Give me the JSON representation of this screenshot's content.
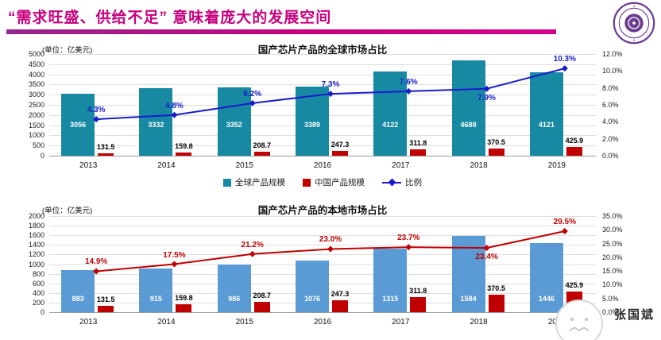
{
  "header": {
    "title": "“需求旺盛、供给不足” 意味着庞大的发展空间",
    "title_color": "#c7017f",
    "underline_colors": [
      "#93278f",
      "#d4008c"
    ]
  },
  "logo": {
    "color": "#6c3d91"
  },
  "watermark": {
    "text": "张国斌"
  },
  "chart_data": [
    {
      "type": "bar+line",
      "title": "国产芯片产品的全球市场占比",
      "unit_label": "(单位：亿美元)",
      "categories": [
        "2013",
        "2014",
        "2015",
        "2016",
        "2017",
        "2018",
        "2019"
      ],
      "series": [
        {
          "name": "全球产品规模",
          "kind": "bar",
          "color": "#1789a2",
          "decimals": 0,
          "values": [
            3056,
            3332,
            3352,
            3389,
            4122,
            4688,
            4121
          ]
        },
        {
          "name": "中国产品规模",
          "kind": "bar",
          "color": "#c00000",
          "decimals": 1,
          "values": [
            131.5,
            159.8,
            208.7,
            247.3,
            311.8,
            370.5,
            425.9
          ]
        },
        {
          "name": "比例",
          "kind": "line",
          "color": "#1a1acd",
          "decimals": 1,
          "values": [
            4.3,
            4.8,
            6.2,
            7.3,
            7.6,
            7.9,
            10.3
          ]
        }
      ],
      "left_axis": {
        "min": 0,
        "max": 5000,
        "step": 500
      },
      "right_axis": {
        "min": 0,
        "max": 12,
        "step": 2,
        "suffix": "%"
      },
      "legend_position": "bottom"
    },
    {
      "type": "bar+line",
      "title": "国产芯片产品的本地市场占比",
      "unit_label": "(单位：亿美元)",
      "categories": [
        "2013",
        "2014",
        "2015",
        "2016",
        "2017",
        "2018",
        "2019"
      ],
      "series": [
        {
          "name": "",
          "kind": "bar",
          "color": "#5b9bd5",
          "decimals": 0,
          "values": [
            883,
            915,
            986,
            1076,
            1315,
            1584,
            1446
          ]
        },
        {
          "name": "",
          "kind": "bar",
          "color": "#c00000",
          "decimals": 1,
          "values": [
            131.5,
            159.8,
            208.7,
            247.3,
            311.8,
            370.5,
            425.9
          ]
        },
        {
          "name": "",
          "kind": "line",
          "color": "#c00000",
          "decimals": 1,
          "values": [
            14.9,
            17.5,
            21.2,
            23.0,
            23.7,
            23.4,
            29.5
          ]
        }
      ],
      "left_axis": {
        "min": 0,
        "max": 2000,
        "step": 200
      },
      "right_axis": {
        "min": 0,
        "max": 35,
        "step": 5,
        "suffix": "%"
      },
      "legend_position": "none"
    }
  ]
}
